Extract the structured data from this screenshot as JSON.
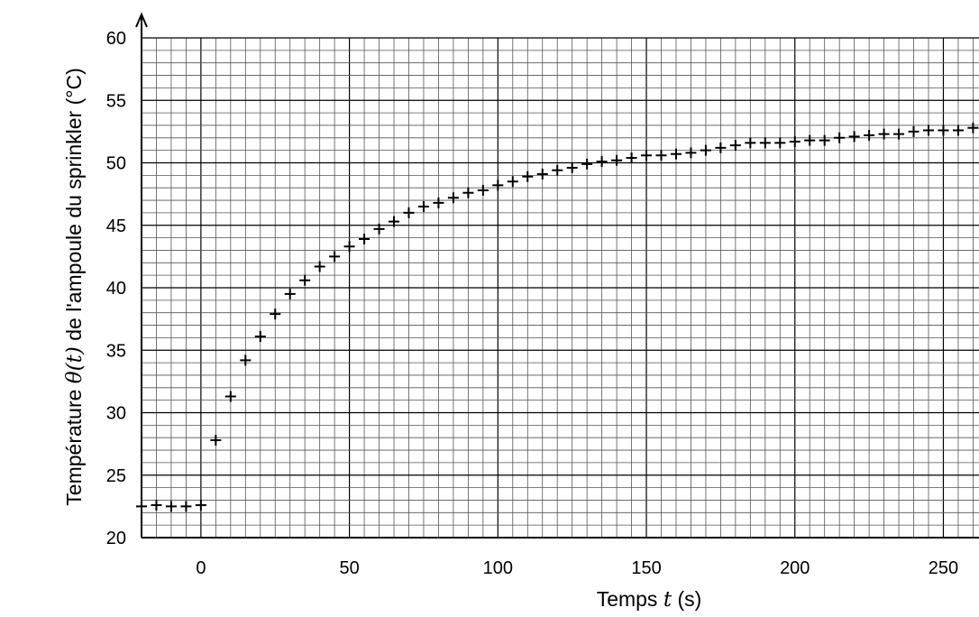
{
  "chart_data": {
    "type": "scatter",
    "xlabel": {
      "prefix": "Temps ",
      "var": "t",
      "suffix": " (s)"
    },
    "ylabel": {
      "prefix": "Température ",
      "var": "θ(t)",
      "suffix": " de l'ampoule du sprinkler (°C)"
    },
    "xlim": [
      -20,
      262
    ],
    "ylim": [
      20,
      60
    ],
    "x_ticks": [
      0,
      50,
      100,
      150,
      200,
      250
    ],
    "y_ticks": [
      20,
      25,
      30,
      35,
      40,
      45,
      50,
      55,
      60
    ],
    "x_minor_step": 5,
    "y_minor_step": 1,
    "grid": true,
    "marker": "plus",
    "points": [
      [
        -20,
        22.5
      ],
      [
        -15,
        22.6
      ],
      [
        -10,
        22.5
      ],
      [
        -5,
        22.5
      ],
      [
        0,
        22.6
      ],
      [
        5,
        27.8
      ],
      [
        10,
        31.3
      ],
      [
        15,
        34.2
      ],
      [
        20,
        36.1
      ],
      [
        25,
        37.9
      ],
      [
        30,
        39.5
      ],
      [
        35,
        40.6
      ],
      [
        40,
        41.7
      ],
      [
        45,
        42.5
      ],
      [
        50,
        43.3
      ],
      [
        55,
        43.9
      ],
      [
        60,
        44.7
      ],
      [
        65,
        45.3
      ],
      [
        70,
        46.0
      ],
      [
        75,
        46.5
      ],
      [
        80,
        46.8
      ],
      [
        85,
        47.2
      ],
      [
        90,
        47.6
      ],
      [
        95,
        47.8
      ],
      [
        100,
        48.2
      ],
      [
        105,
        48.5
      ],
      [
        110,
        48.9
      ],
      [
        115,
        49.1
      ],
      [
        120,
        49.4
      ],
      [
        125,
        49.6
      ],
      [
        130,
        49.9
      ],
      [
        135,
        50.1
      ],
      [
        140,
        50.2
      ],
      [
        145,
        50.4
      ],
      [
        150,
        50.6
      ],
      [
        155,
        50.6
      ],
      [
        160,
        50.7
      ],
      [
        165,
        50.8
      ],
      [
        170,
        51.0
      ],
      [
        175,
        51.2
      ],
      [
        180,
        51.4
      ],
      [
        185,
        51.6
      ],
      [
        190,
        51.6
      ],
      [
        195,
        51.6
      ],
      [
        200,
        51.7
      ],
      [
        205,
        51.8
      ],
      [
        210,
        51.8
      ],
      [
        215,
        52.0
      ],
      [
        220,
        52.1
      ],
      [
        225,
        52.2
      ],
      [
        230,
        52.3
      ],
      [
        235,
        52.3
      ],
      [
        240,
        52.5
      ],
      [
        245,
        52.6
      ],
      [
        250,
        52.6
      ],
      [
        255,
        52.6
      ],
      [
        260,
        52.8
      ]
    ]
  }
}
